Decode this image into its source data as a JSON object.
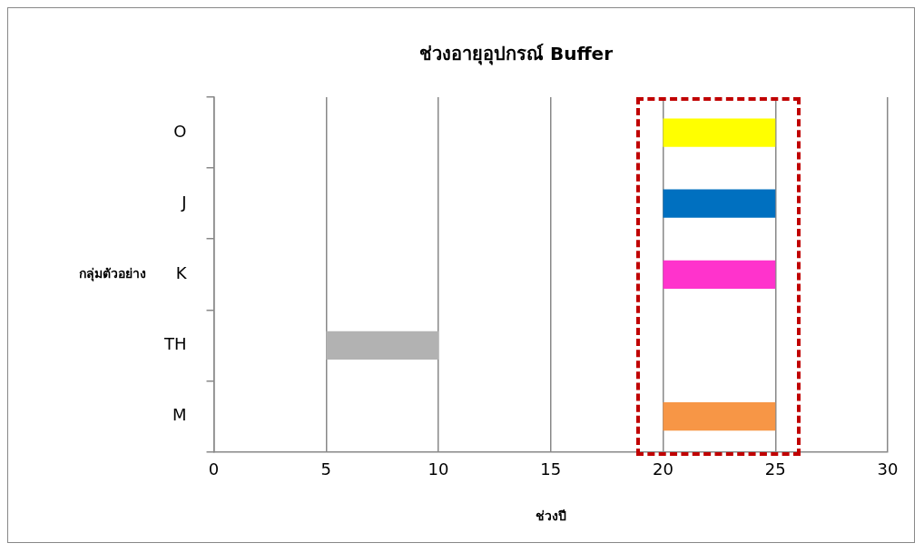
{
  "chart_data": {
    "type": "bar",
    "orientation": "horizontal",
    "title": "ช่วงอายุอุปกรณ์ Buffer",
    "xlabel": "ช่วงปี",
    "ylabel": "กลุ่มตัวอย่าง",
    "categories": [
      "O",
      "J",
      "K",
      "TH",
      "M"
    ],
    "base": [
      20,
      20,
      20,
      5,
      20
    ],
    "values": [
      5,
      5,
      5,
      5,
      5
    ],
    "colors": [
      "#ffff00",
      "#0070c0",
      "#ff33cc",
      "#b2b2b2",
      "#f79646"
    ],
    "xlim": [
      0,
      30
    ],
    "xticks": [
      0,
      5,
      10,
      15,
      20,
      25,
      30
    ],
    "grid": "x"
  }
}
